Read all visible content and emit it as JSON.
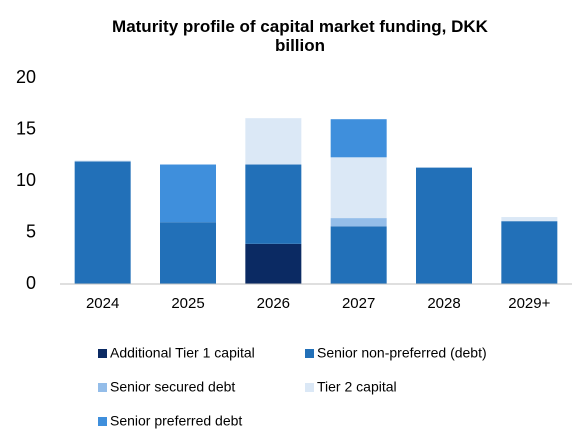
{
  "chart_data": {
    "type": "bar",
    "stacked": true,
    "title": "Maturity profile of capital market funding, DKK billion",
    "categories": [
      "2024",
      "2025",
      "2026",
      "2027",
      "2028",
      "2029+"
    ],
    "series": [
      {
        "name": "Additional Tier 1 capital",
        "color": "#0b2a63",
        "values": [
          0,
          0,
          3.9,
          0,
          0,
          0
        ]
      },
      {
        "name": "Senior non-preferred (debt)",
        "color": "#2270b8",
        "values": [
          11.9,
          6.0,
          7.7,
          5.6,
          11.3,
          6.1
        ]
      },
      {
        "name": "Senior secured debt",
        "color": "#94bde9",
        "values": [
          0,
          0,
          0,
          0.8,
          0,
          0
        ]
      },
      {
        "name": "Tier 2 capital",
        "color": "#dbe8f6",
        "values": [
          0.1,
          0,
          4.5,
          5.9,
          0,
          0.4
        ]
      },
      {
        "name": "Senior preferred debt",
        "color": "#3f8fdc",
        "values": [
          0,
          5.6,
          0,
          3.7,
          0,
          0
        ]
      }
    ],
    "ylim": [
      0,
      20
    ],
    "yticks": [
      0,
      5,
      10,
      15,
      20
    ],
    "grid": false,
    "legend": "bottom"
  }
}
